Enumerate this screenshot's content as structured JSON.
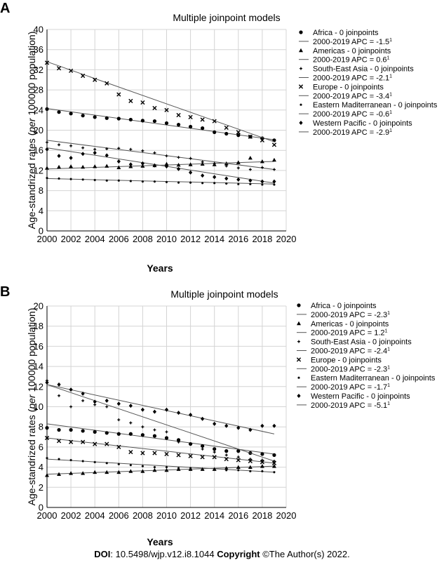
{
  "footer": {
    "doi_label": "DOI",
    "doi": ": 10.5498/wjp.v12.i8.1044",
    "copyright_label": "Copyright",
    "copyright": " ©The Author(s) 2022."
  },
  "chart_data": [
    {
      "panel": "A",
      "type": "scatter",
      "title": "Multiple joinpoint models",
      "xlabel": "Years",
      "ylabel_prefix": "Age-standrized rates (",
      "ylabel_italic": "per",
      "ylabel_suffix": " 100000 population)",
      "xlim": [
        2000,
        2020
      ],
      "ylim": [
        0,
        40
      ],
      "xticks": [
        2000,
        2002,
        2004,
        2006,
        2008,
        2010,
        2012,
        2014,
        2016,
        2018,
        2020
      ],
      "yticks": [
        0,
        4,
        8,
        12,
        16,
        20,
        24,
        28,
        32,
        36,
        40
      ],
      "grid": true,
      "legend_position": "right",
      "series": [
        {
          "name": "Africa - 0 joinpoints",
          "marker": "circle",
          "trend_label": "2000-2019 APC = -1.5",
          "trend_sup": "1",
          "x": [
            2000,
            2001,
            2002,
            2003,
            2004,
            2005,
            2006,
            2007,
            2008,
            2009,
            2010,
            2011,
            2012,
            2013,
            2014,
            2015,
            2016,
            2017,
            2018,
            2019
          ],
          "values": [
            24.2,
            23.6,
            23.3,
            22.9,
            22.6,
            22.4,
            22.3,
            22.1,
            21.9,
            21.8,
            21.4,
            21.1,
            20.7,
            20.4,
            19.6,
            19.3,
            19.0,
            18.7,
            18.4,
            18.0
          ],
          "trend": [
            24.3,
            18.1
          ]
        },
        {
          "name": "Americas - 0 joinpoints",
          "marker": "triangle",
          "trend_label": "2000-2019 APC = 0.6",
          "trend_sup": "1",
          "x": [
            2000,
            2001,
            2002,
            2003,
            2004,
            2005,
            2006,
            2007,
            2008,
            2009,
            2010,
            2011,
            2012,
            2013,
            2014,
            2015,
            2016,
            2017,
            2018,
            2019
          ],
          "values": [
            12.5,
            12.7,
            12.8,
            12.7,
            12.8,
            12.9,
            12.6,
            12.8,
            12.9,
            13.0,
            13.3,
            13.1,
            13.2,
            13.3,
            13.2,
            13.4,
            13.6,
            14.5,
            13.8,
            14.1
          ],
          "trend": [
            12.3,
            13.8
          ]
        },
        {
          "name": "South-East Asia - 0 joinpoints",
          "marker": "plus",
          "trend_label": "2000-2019 APC = -2.1",
          "trend_sup": "1",
          "x": [
            2000,
            2001,
            2002,
            2003,
            2004,
            2005,
            2006,
            2007,
            2008,
            2009,
            2010,
            2011,
            2012,
            2013,
            2014,
            2015,
            2016,
            2017,
            2018,
            2019
          ],
          "values": [
            17.6,
            17.1,
            16.9,
            16.5,
            16.2,
            16.3,
            16.4,
            16.2,
            15.9,
            15.5,
            14.9,
            14.6,
            14.4,
            13.7,
            13.4,
            12.9,
            12.5,
            12.2,
            12.6,
            12.2
          ],
          "trend": [
            18.0,
            12.2
          ]
        },
        {
          "name": "Europe - 0 joinpoints",
          "marker": "cross",
          "trend_label": "2000-2019 APC = -3.4",
          "trend_sup": "1",
          "x": [
            2000,
            2001,
            2002,
            2003,
            2004,
            2005,
            2006,
            2007,
            2008,
            2009,
            2010,
            2011,
            2012,
            2013,
            2014,
            2015,
            2016,
            2017,
            2018,
            2019
          ],
          "values": [
            33.4,
            32.3,
            31.8,
            30.8,
            30.0,
            29.3,
            27.1,
            25.8,
            25.5,
            24.4,
            24.0,
            23.0,
            22.6,
            22.1,
            21.8,
            20.5,
            19.6,
            18.7,
            18.0,
            17.1
          ],
          "trend": [
            33.6,
            17.7
          ]
        },
        {
          "name": "Eastern Maditerranean - 0 joinpoints",
          "marker": "star",
          "trend_label": "2000-2019 APC = -0.6",
          "trend_sup": "1",
          "x": [
            2000,
            2001,
            2002,
            2003,
            2004,
            2005,
            2006,
            2007,
            2008,
            2009,
            2010,
            2011,
            2012,
            2013,
            2014,
            2015,
            2016,
            2017,
            2018,
            2019
          ],
          "values": [
            10.5,
            10.4,
            10.3,
            10.2,
            10.1,
            10.0,
            10.0,
            9.9,
            9.8,
            9.8,
            9.7,
            9.6,
            9.6,
            9.5,
            9.5,
            9.4,
            9.3,
            9.3,
            9.2,
            9.2
          ],
          "trend": [
            10.4,
            9.3
          ]
        },
        {
          "name": "Western Pacific - 0 joinpoints",
          "marker": "diamond",
          "trend_label": "2000-2019 APC = -2.9",
          "trend_sup": "1",
          "x": [
            2000,
            2001,
            2002,
            2003,
            2004,
            2005,
            2006,
            2007,
            2008,
            2009,
            2010,
            2011,
            2012,
            2013,
            2014,
            2015,
            2016,
            2017,
            2018,
            2019
          ],
          "values": [
            16.2,
            14.9,
            14.5,
            15.3,
            15.5,
            15.0,
            13.8,
            13.2,
            13.4,
            13.0,
            12.8,
            12.3,
            11.6,
            11.0,
            10.7,
            10.4,
            10.2,
            10.0,
            9.8,
            9.8
          ],
          "trend": [
            16.5,
            9.5
          ]
        }
      ]
    },
    {
      "panel": "B",
      "type": "scatter",
      "title": "Multiple joinpoint models",
      "xlabel": "Years",
      "ylabel_prefix": "Age-standrized rates (",
      "ylabel_italic": "per",
      "ylabel_suffix": " 100000 population)",
      "xlim": [
        2000,
        2020
      ],
      "ylim": [
        0,
        20
      ],
      "xticks": [
        2000,
        2002,
        2004,
        2006,
        2008,
        2010,
        2012,
        2014,
        2016,
        2018,
        2020
      ],
      "yticks": [
        0,
        2,
        4,
        6,
        8,
        10,
        12,
        14,
        16,
        18,
        20
      ],
      "grid": true,
      "legend_position": "right",
      "series": [
        {
          "name": "Africa - 0 joinpoints",
          "marker": "circle",
          "trend_label": "2000-2019 APC = -2.3",
          "trend_sup": "1",
          "x": [
            2000,
            2001,
            2002,
            2003,
            2004,
            2005,
            2006,
            2007,
            2008,
            2009,
            2010,
            2011,
            2012,
            2013,
            2014,
            2015,
            2016,
            2017,
            2018,
            2019
          ],
          "values": [
            7.9,
            7.7,
            7.7,
            7.6,
            7.5,
            7.4,
            7.3,
            7.3,
            7.2,
            7.1,
            6.9,
            6.7,
            6.3,
            6.1,
            5.8,
            5.6,
            5.6,
            5.4,
            5.3,
            5.2
          ],
          "trend": [
            8.3,
            5.3
          ]
        },
        {
          "name": "Americas - 0 joinpoints",
          "marker": "triangle",
          "trend_label": "2000-2019 APC = 1.2",
          "trend_sup": "1",
          "x": [
            2000,
            2001,
            2002,
            2003,
            2004,
            2005,
            2006,
            2007,
            2008,
            2009,
            2010,
            2011,
            2012,
            2013,
            2014,
            2015,
            2016,
            2017,
            2018,
            2019
          ],
          "values": [
            3.2,
            3.3,
            3.4,
            3.4,
            3.5,
            3.5,
            3.5,
            3.6,
            3.6,
            3.7,
            3.7,
            3.8,
            3.8,
            3.8,
            3.8,
            3.9,
            4.0,
            4.0,
            4.1,
            4.1
          ],
          "trend": [
            3.3,
            4.1
          ]
        },
        {
          "name": "South-East Asia - 0 joinpoints",
          "marker": "plus",
          "trend_label": "2000-2019 APC = -2.4",
          "trend_sup": "1",
          "x": [
            2000,
            2001,
            2002,
            2003,
            2004,
            2005,
            2006,
            2007,
            2008,
            2009,
            2010,
            2011,
            2012,
            2013,
            2014,
            2015,
            2016,
            2017,
            2018,
            2019
          ],
          "values": [
            12.6,
            11.1,
            10.0,
            10.6,
            10.2,
            10.0,
            8.7,
            8.4,
            8.0,
            7.7,
            7.5,
            6.5,
            6.3,
            5.8,
            5.5,
            5.2,
            5.0,
            4.8,
            4.7,
            4.6
          ],
          "trend": [
            12.2,
            4.6
          ]
        },
        {
          "name": "Europe - 0 joinpoints",
          "marker": "cross",
          "trend_label": "2000-2019 APC = -2.3",
          "trend_sup": "1",
          "x": [
            2000,
            2001,
            2002,
            2003,
            2004,
            2005,
            2006,
            2007,
            2008,
            2009,
            2010,
            2011,
            2012,
            2013,
            2014,
            2015,
            2016,
            2017,
            2018,
            2019
          ],
          "values": [
            6.9,
            6.6,
            6.5,
            6.5,
            6.3,
            6.3,
            6.0,
            5.5,
            5.4,
            5.4,
            5.3,
            5.2,
            5.1,
            5.0,
            5.0,
            4.8,
            4.7,
            4.6,
            4.5,
            4.4
          ],
          "trend": [
            6.9,
            4.4
          ]
        },
        {
          "name": "Eastern Maditerranean - 0 joinpoints",
          "marker": "star",
          "trend_label": "2000-2019 APC = -1.7",
          "trend_sup": "1",
          "x": [
            2000,
            2001,
            2002,
            2003,
            2004,
            2005,
            2006,
            2007,
            2008,
            2009,
            2010,
            2011,
            2012,
            2013,
            2014,
            2015,
            2016,
            2017,
            2018,
            2019
          ],
          "values": [
            4.9,
            4.8,
            4.7,
            4.6,
            4.5,
            4.4,
            4.3,
            4.2,
            4.1,
            4.0,
            4.0,
            3.9,
            3.9,
            3.8,
            3.8,
            3.7,
            3.7,
            3.6,
            3.6,
            3.5
          ],
          "trend": [
            4.8,
            3.5
          ]
        },
        {
          "name": "Western Pacific - 0 joinpoints",
          "marker": "diamond",
          "trend_label": "2000-2019 APC = -5.1",
          "trend_sup": "1",
          "x": [
            2000,
            2001,
            2002,
            2003,
            2004,
            2005,
            2006,
            2007,
            2008,
            2009,
            2010,
            2011,
            2012,
            2013,
            2014,
            2015,
            2016,
            2017,
            2018,
            2019
          ],
          "values": [
            12.4,
            12.2,
            11.7,
            11.3,
            10.5,
            10.6,
            10.3,
            10.1,
            9.7,
            9.5,
            9.7,
            9.4,
            9.2,
            8.8,
            8.3,
            8.1,
            7.9,
            7.7,
            8.1,
            8.1
          ],
          "trend": [
            12.2,
            7.3
          ]
        }
      ]
    }
  ]
}
